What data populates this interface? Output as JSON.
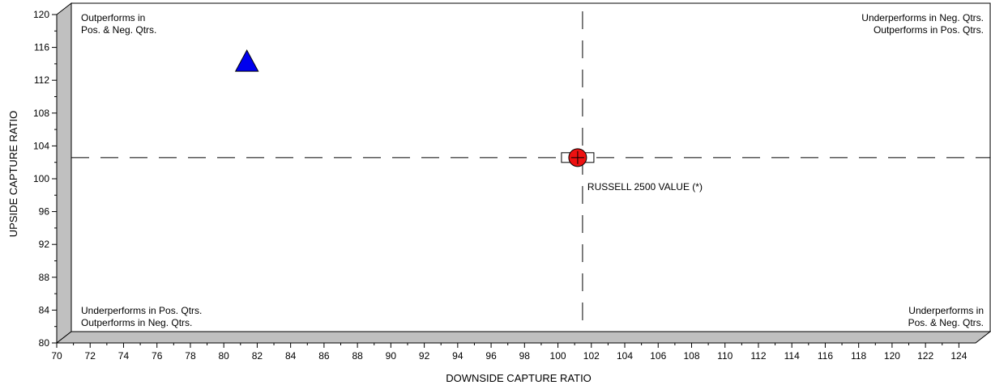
{
  "chart_data": {
    "type": "scatter",
    "xlabel": "DOWNSIDE CAPTURE RATIO",
    "ylabel": "UPSIDE CAPTURE RATIO",
    "xlim": [
      70,
      125
    ],
    "ylim": [
      80,
      120
    ],
    "x_ticks": [
      70,
      72,
      74,
      76,
      78,
      80,
      82,
      84,
      86,
      88,
      90,
      92,
      94,
      96,
      98,
      100,
      102,
      104,
      106,
      108,
      110,
      112,
      114,
      116,
      118,
      120,
      122,
      124
    ],
    "y_ticks": [
      80,
      84,
      88,
      92,
      96,
      100,
      104,
      108,
      112,
      116,
      120
    ],
    "grid": false,
    "reference_lines": {
      "x": 100.6,
      "y": 101.2
    },
    "series": [
      {
        "marker": "triangle",
        "color": "#0000ee",
        "points": [
          {
            "x": 80.8,
            "y": 112.9
          }
        ]
      },
      {
        "name": "RUSSELL 2500 VALUE (*)",
        "marker": "circle",
        "color": "#ee1111",
        "points": [
          {
            "x": 100.6,
            "y": 101.2
          }
        ]
      }
    ],
    "quadrant_labels": {
      "top_left": [
        "Outperforms in",
        "Pos. & Neg. Qtrs."
      ],
      "top_right": [
        "Underperforms in Neg. Qtrs.",
        "Outperforms in Pos. Qtrs."
      ],
      "bottom_left": [
        "Underperforms in Pos. Qtrs.",
        "Outperforms in Neg. Qtrs."
      ],
      "bottom_right": [
        "Underperforms in",
        "Pos. & Neg. Qtrs."
      ]
    }
  }
}
